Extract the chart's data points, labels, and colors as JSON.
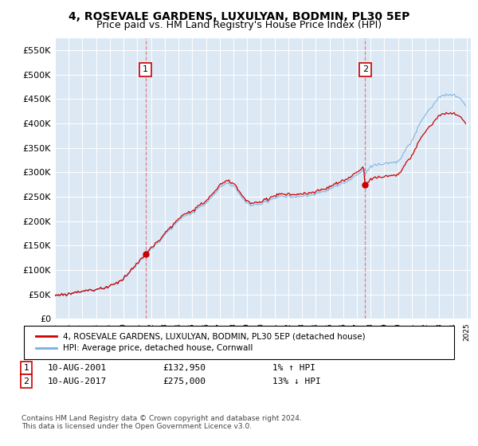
{
  "title": "4, ROSEVALE GARDENS, LUXULYAN, BODMIN, PL30 5EP",
  "subtitle": "Price paid vs. HM Land Registry's House Price Index (HPI)",
  "ylim": [
    0,
    575000
  ],
  "yticks": [
    0,
    50000,
    100000,
    150000,
    200000,
    250000,
    300000,
    350000,
    400000,
    450000,
    500000,
    550000
  ],
  "ytick_labels": [
    "£0",
    "£50K",
    "£100K",
    "£150K",
    "£200K",
    "£250K",
    "£300K",
    "£350K",
    "£400K",
    "£450K",
    "£500K",
    "£550K"
  ],
  "plot_bg_color": "#dce9f5",
  "sale1_date": 2001.6,
  "sale1_price": 132950,
  "sale2_date": 2017.6,
  "sale2_price": 275000,
  "legend_line1": "4, ROSEVALE GARDENS, LUXULYAN, BODMIN, PL30 5EP (detached house)",
  "legend_line2": "HPI: Average price, detached house, Cornwall",
  "footer": "Contains HM Land Registry data © Crown copyright and database right 2024.\nThis data is licensed under the Open Government Licence v3.0.",
  "red_color": "#cc0000",
  "blue_color": "#7aaedc",
  "title_fontsize": 10,
  "subtitle_fontsize": 9
}
